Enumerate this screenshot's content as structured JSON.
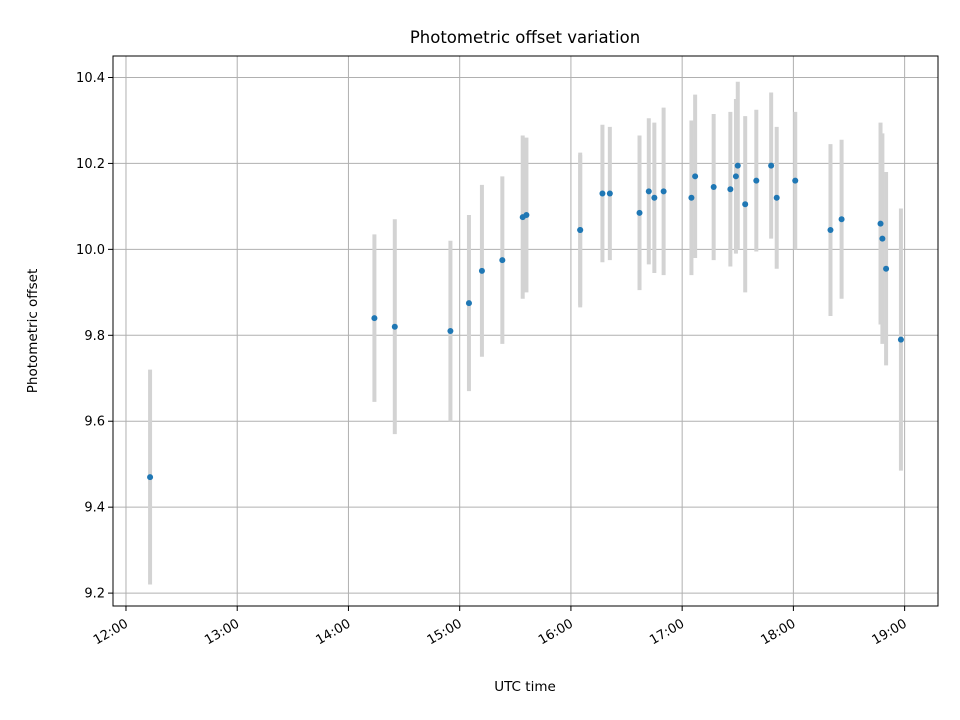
{
  "chart_data": {
    "type": "scatter",
    "title": "Photometric offset variation",
    "xlabel": "UTC time",
    "ylabel": "Photometric offset",
    "x_unit": "time-of-day",
    "xlim": [
      "11:53",
      "19:18"
    ],
    "ylim": [
      9.17,
      10.45
    ],
    "x_ticks": [
      "12:00",
      "13:00",
      "14:00",
      "15:00",
      "16:00",
      "17:00",
      "18:00",
      "19:00"
    ],
    "y_ticks": [
      "9.2",
      "9.4",
      "9.6",
      "9.8",
      "10.0",
      "10.2",
      "10.4"
    ],
    "grid": true,
    "legend": "none",
    "point_color": "#1f77b4",
    "error_bar_color": "#d3d3d3",
    "points": [
      {
        "time": "12:13",
        "y": 9.47,
        "err": 0.25
      },
      {
        "time": "14:14",
        "y": 9.84,
        "err": 0.195
      },
      {
        "time": "14:25",
        "y": 9.82,
        "err": 0.25
      },
      {
        "time": "14:55",
        "y": 9.81,
        "err": 0.21
      },
      {
        "time": "15:05",
        "y": 9.875,
        "err": 0.205
      },
      {
        "time": "15:12",
        "y": 9.95,
        "err": 0.2
      },
      {
        "time": "15:23",
        "y": 9.975,
        "err": 0.195
      },
      {
        "time": "15:34",
        "y": 10.075,
        "err": 0.19
      },
      {
        "time": "15:36",
        "y": 10.08,
        "err": 0.18
      },
      {
        "time": "16:05",
        "y": 10.045,
        "err": 0.175
      },
      {
        "time": "16:05",
        "y": 10.045,
        "err": 0.18
      },
      {
        "time": "16:17",
        "y": 10.13,
        "err": 0.16
      },
      {
        "time": "16:21",
        "y": 10.13,
        "err": 0.155
      },
      {
        "time": "16:37",
        "y": 10.085,
        "err": 0.18
      },
      {
        "time": "16:42",
        "y": 10.135,
        "err": 0.17
      },
      {
        "time": "16:45",
        "y": 10.12,
        "err": 0.175
      },
      {
        "time": "16:50",
        "y": 10.135,
        "err": 0.195
      },
      {
        "time": "17:05",
        "y": 10.12,
        "err": 0.18
      },
      {
        "time": "17:07",
        "y": 10.17,
        "err": 0.19
      },
      {
        "time": "17:17",
        "y": 10.145,
        "err": 0.17
      },
      {
        "time": "17:26",
        "y": 10.14,
        "err": 0.18
      },
      {
        "time": "17:29",
        "y": 10.17,
        "err": 0.18
      },
      {
        "time": "17:30",
        "y": 10.195,
        "err": 0.195
      },
      {
        "time": "17:34",
        "y": 10.105,
        "err": 0.205
      },
      {
        "time": "17:40",
        "y": 10.16,
        "err": 0.165
      },
      {
        "time": "17:48",
        "y": 10.195,
        "err": 0.17
      },
      {
        "time": "17:51",
        "y": 10.12,
        "err": 0.165
      },
      {
        "time": "18:01",
        "y": 10.16,
        "err": 0.16
      },
      {
        "time": "18:20",
        "y": 10.045,
        "err": 0.2
      },
      {
        "time": "18:26",
        "y": 10.07,
        "err": 0.185
      },
      {
        "time": "18:47",
        "y": 10.06,
        "err": 0.235
      },
      {
        "time": "18:48",
        "y": 10.025,
        "err": 0.245
      },
      {
        "time": "18:50",
        "y": 9.955,
        "err": 0.225
      },
      {
        "time": "18:58",
        "y": 9.79,
        "err": 0.305
      }
    ]
  }
}
